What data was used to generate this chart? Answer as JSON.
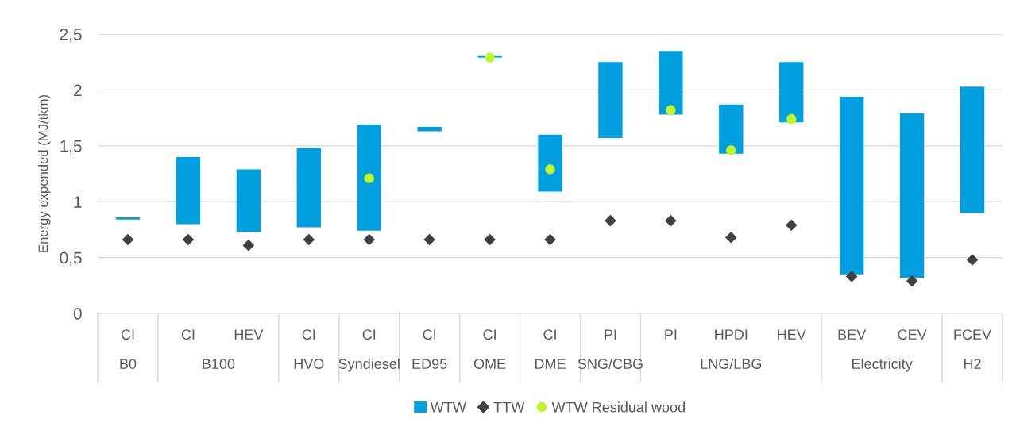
{
  "chart_data": {
    "type": "bar",
    "ylabel": "Energy expended (MJ/tkm)",
    "categories": [
      "CI",
      "CI",
      "HEV",
      "CI",
      "CI",
      "CI",
      "CI",
      "CI",
      "PI",
      "PI",
      "HPDI",
      "HEV",
      "BEV",
      "CEV",
      "FCEV"
    ],
    "annotations": [
      "B0",
      "B100",
      "HVO",
      "Syndiesel",
      "ED95",
      "OME",
      "DME",
      "SNG/CBG",
      "LNG/LBG",
      "Electricity",
      "H2"
    ],
    "series": [
      {
        "name": "WTW",
        "color": "#009fdf",
        "base": [
          0.84,
          0.8,
          0.73,
          0.77,
          0.74,
          1.63,
          2.29,
          1.09,
          1.57,
          1.78,
          1.43,
          1.71,
          0.35,
          0.32,
          0.9
        ],
        "values": [
          0.02,
          0.6,
          0.56,
          0.71,
          0.95,
          0.04,
          0.02,
          0.51,
          0.68,
          0.57,
          0.44,
          0.54,
          1.59,
          1.47,
          1.13
        ]
      },
      {
        "name": "TTW",
        "type": "scatter",
        "marker": "diamond",
        "color": "#404040",
        "values": [
          0.66,
          0.66,
          0.61,
          0.66,
          0.66,
          0.66,
          0.66,
          0.66,
          0.83,
          0.83,
          0.68,
          0.79,
          0.33,
          0.29,
          0.48
        ]
      },
      {
        "name": "WTW Residual wood",
        "type": "scatter",
        "marker": "circle",
        "color": "#bff529",
        "values": [
          null,
          null,
          null,
          null,
          1.21,
          null,
          2.29,
          1.29,
          null,
          1.82,
          1.46,
          1.74,
          null,
          null,
          null
        ]
      }
    ],
    "ylim": [
      0,
      2.5
    ],
    "yticks": [
      0,
      {
        "value": 0.5,
        "label": "0,5"
      },
      1,
      {
        "value": 1.5,
        "label": "1,5"
      },
      2,
      {
        "value": 2.5,
        "label": "2,5"
      }
    ],
    "grid": "y",
    "legend": "bottom"
  }
}
